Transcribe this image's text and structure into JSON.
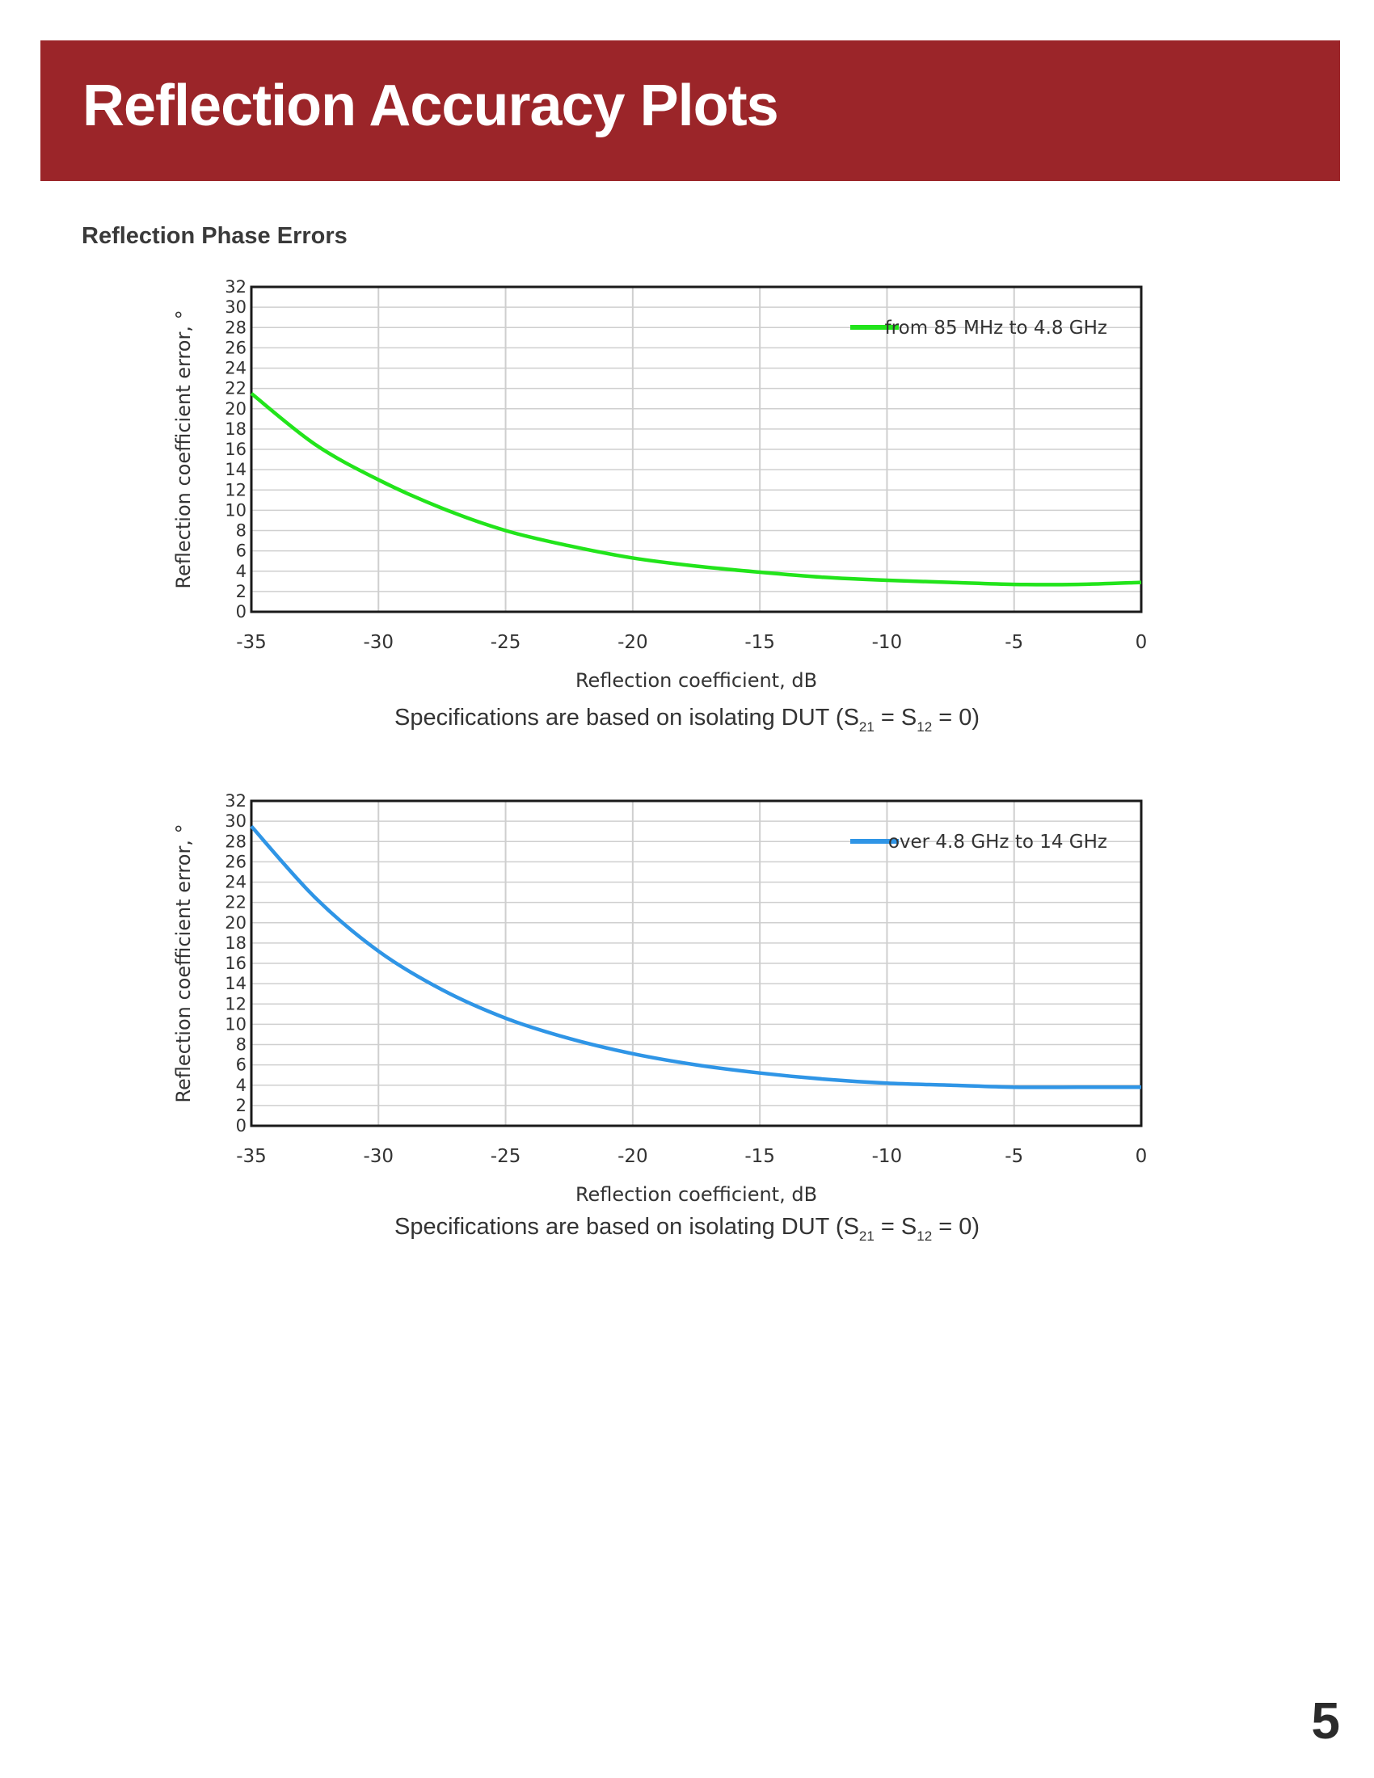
{
  "page": {
    "title": "Reflection Accuracy Plots",
    "section_title": "Reflection Phase Errors",
    "page_number": "5",
    "colors": {
      "header": "#9b2529",
      "series1": "#22e41b",
      "series2": "#2f95e6"
    }
  },
  "captions": [
    {
      "prefix": "Specifications are based on isolating DUT (S",
      "s1": "21",
      "mid": " = S",
      "s2": "12",
      "suffix": " = 0)"
    },
    {
      "prefix": "Specifications are based on isolating DUT (S",
      "s1": "21",
      "mid": " = S",
      "s2": "12",
      "suffix": " = 0)"
    }
  ],
  "chart_data": [
    {
      "type": "line",
      "xlabel": "Reflection coefficient, dB",
      "ylabel": "Reflection coefficient error, °",
      "xlim": [
        -35,
        0
      ],
      "ylim": [
        0,
        32
      ],
      "x_ticks": [
        -35,
        -30,
        -25,
        -20,
        -15,
        -10,
        -5,
        0
      ],
      "y_ticks": [
        0,
        2,
        4,
        6,
        8,
        10,
        12,
        14,
        16,
        18,
        20,
        22,
        24,
        26,
        28,
        30,
        32
      ],
      "grid": true,
      "legend_position": "top-right",
      "series": [
        {
          "name": "from 85 MHz to 4.8 GHz",
          "color": "#22e41b",
          "x": [
            -35,
            -32.5,
            -30,
            -27.5,
            -25,
            -22.5,
            -20,
            -17.5,
            -15,
            -12.5,
            -10,
            -7.5,
            -5,
            -2.5,
            0
          ],
          "y": [
            21.5,
            16.5,
            13,
            10.2,
            8,
            6.5,
            5.3,
            4.5,
            3.9,
            3.4,
            3.1,
            2.9,
            2.7,
            2.7,
            2.9
          ]
        }
      ]
    },
    {
      "type": "line",
      "xlabel": "Reflection coefficient, dB",
      "ylabel": "Reflection coefficient error, °",
      "xlim": [
        -35,
        0
      ],
      "ylim": [
        0,
        32
      ],
      "x_ticks": [
        -35,
        -30,
        -25,
        -20,
        -15,
        -10,
        -5,
        0
      ],
      "y_ticks": [
        0,
        2,
        4,
        6,
        8,
        10,
        12,
        14,
        16,
        18,
        20,
        22,
        24,
        26,
        28,
        30,
        32
      ],
      "grid": true,
      "legend_position": "top-right",
      "series": [
        {
          "name": "over 4.8 GHz to 14 GHz",
          "color": "#2f95e6",
          "x": [
            -35,
            -32.5,
            -30,
            -27.5,
            -25,
            -22.5,
            -20,
            -17.5,
            -15,
            -12.5,
            -10,
            -7.5,
            -5,
            -2.5,
            0
          ],
          "y": [
            29.5,
            22.5,
            17.2,
            13.4,
            10.6,
            8.6,
            7.1,
            6,
            5.2,
            4.6,
            4.2,
            4,
            3.8,
            3.8,
            3.8
          ]
        }
      ]
    }
  ]
}
